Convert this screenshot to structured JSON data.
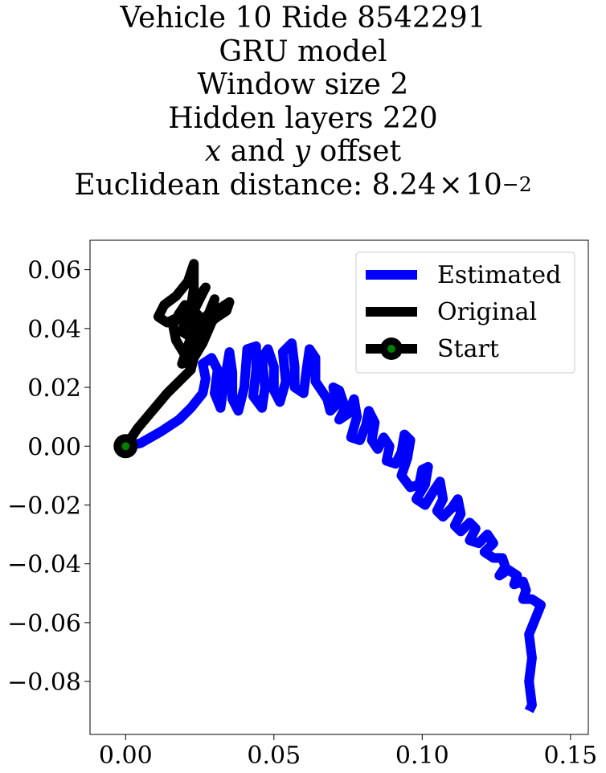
{
  "chart_data": {
    "type": "line",
    "title_lines": [
      "Vehicle 10 Ride 8542291",
      "GRU model",
      "Window size 2",
      "Hidden layers 220"
    ],
    "title_offset_line": {
      "var1": "x",
      "and": " and ",
      "var2": "y",
      "rest": " offset"
    },
    "title_distance_line": {
      "prefix": "Euclidean distance: ",
      "value": "8.24",
      "times": "×",
      "base": "10",
      "exponent": "−2"
    },
    "xlabel": "",
    "ylabel": "",
    "xlim": [
      -0.012,
      0.156
    ],
    "ylim": [
      -0.098,
      0.07
    ],
    "xticks": [
      0.0,
      0.05,
      0.1,
      0.15
    ],
    "xtick_labels": [
      "0.00",
      "0.05",
      "0.10",
      "0.15"
    ],
    "yticks": [
      0.06,
      0.04,
      0.02,
      0.0,
      -0.02,
      -0.04,
      -0.06,
      -0.08
    ],
    "ytick_labels": [
      "0.06",
      "0.04",
      "0.02",
      "0.00",
      "−0.02",
      "−0.04",
      "−0.06",
      "−0.08"
    ],
    "grid": false,
    "legend_position": "top-right",
    "series": [
      {
        "name": "Estimated",
        "color": "#0000ff",
        "points": [
          [
            0.0,
            0.0
          ],
          [
            0.005,
            0.001
          ],
          [
            0.012,
            0.005
          ],
          [
            0.018,
            0.009
          ],
          [
            0.022,
            0.013
          ],
          [
            0.026,
            0.018
          ],
          [
            0.027,
            0.023
          ],
          [
            0.026,
            0.028
          ],
          [
            0.029,
            0.03
          ],
          [
            0.031,
            0.026
          ],
          [
            0.03,
            0.018
          ],
          [
            0.032,
            0.013
          ],
          [
            0.033,
            0.02
          ],
          [
            0.035,
            0.032
          ],
          [
            0.036,
            0.025
          ],
          [
            0.036,
            0.016
          ],
          [
            0.038,
            0.012
          ],
          [
            0.04,
            0.02
          ],
          [
            0.041,
            0.033
          ],
          [
            0.044,
            0.034
          ],
          [
            0.044,
            0.026
          ],
          [
            0.043,
            0.017
          ],
          [
            0.046,
            0.013
          ],
          [
            0.047,
            0.02
          ],
          [
            0.046,
            0.03
          ],
          [
            0.048,
            0.033
          ],
          [
            0.05,
            0.027
          ],
          [
            0.05,
            0.019
          ],
          [
            0.052,
            0.015
          ],
          [
            0.054,
            0.022
          ],
          [
            0.053,
            0.032
          ],
          [
            0.056,
            0.035
          ],
          [
            0.057,
            0.027
          ],
          [
            0.057,
            0.02
          ],
          [
            0.06,
            0.018
          ],
          [
            0.061,
            0.026
          ],
          [
            0.062,
            0.033
          ],
          [
            0.064,
            0.03
          ],
          [
            0.064,
            0.022
          ],
          [
            0.066,
            0.019
          ],
          [
            0.068,
            0.016
          ],
          [
            0.069,
            0.012
          ],
          [
            0.071,
            0.014
          ],
          [
            0.07,
            0.02
          ],
          [
            0.072,
            0.019
          ],
          [
            0.074,
            0.013
          ],
          [
            0.072,
            0.009
          ],
          [
            0.075,
            0.011
          ],
          [
            0.077,
            0.016
          ],
          [
            0.078,
            0.01
          ],
          [
            0.076,
            0.003
          ],
          [
            0.079,
            0.002
          ],
          [
            0.081,
            0.007
          ],
          [
            0.082,
            0.012
          ],
          [
            0.084,
            0.008
          ],
          [
            0.083,
            0.002
          ],
          [
            0.085,
            -0.001
          ],
          [
            0.087,
            0.003
          ],
          [
            0.089,
            0.0
          ],
          [
            0.088,
            -0.005
          ],
          [
            0.091,
            -0.006
          ],
          [
            0.093,
            -0.002
          ],
          [
            0.094,
            0.004
          ],
          [
            0.096,
            0.002
          ],
          [
            0.095,
            -0.004
          ],
          [
            0.093,
            -0.01
          ],
          [
            0.096,
            -0.014
          ],
          [
            0.099,
            -0.013
          ],
          [
            0.1,
            -0.008
          ],
          [
            0.102,
            -0.007
          ],
          [
            0.101,
            -0.013
          ],
          [
            0.098,
            -0.018
          ],
          [
            0.101,
            -0.02
          ],
          [
            0.104,
            -0.015
          ],
          [
            0.106,
            -0.012
          ],
          [
            0.107,
            -0.018
          ],
          [
            0.105,
            -0.022
          ],
          [
            0.107,
            -0.024
          ],
          [
            0.11,
            -0.021
          ],
          [
            0.112,
            -0.018
          ],
          [
            0.113,
            -0.023
          ],
          [
            0.111,
            -0.027
          ],
          [
            0.113,
            -0.029
          ],
          [
            0.116,
            -0.026
          ],
          [
            0.118,
            -0.028
          ],
          [
            0.116,
            -0.032
          ],
          [
            0.119,
            -0.033
          ],
          [
            0.122,
            -0.03
          ],
          [
            0.124,
            -0.033
          ],
          [
            0.121,
            -0.036
          ],
          [
            0.124,
            -0.038
          ],
          [
            0.127,
            -0.038
          ],
          [
            0.128,
            -0.041
          ],
          [
            0.126,
            -0.044
          ],
          [
            0.129,
            -0.042
          ],
          [
            0.132,
            -0.044
          ],
          [
            0.131,
            -0.047
          ],
          [
            0.134,
            -0.046
          ],
          [
            0.135,
            -0.049
          ],
          [
            0.134,
            -0.052
          ],
          [
            0.137,
            -0.052
          ],
          [
            0.14,
            -0.054
          ],
          [
            0.138,
            -0.059
          ],
          [
            0.136,
            -0.064
          ],
          [
            0.137,
            -0.072
          ],
          [
            0.136,
            -0.08
          ],
          [
            0.137,
            -0.088
          ],
          [
            0.136,
            -0.09
          ]
        ]
      },
      {
        "name": "Original",
        "color": "#000000",
        "points": [
          [
            0.0,
            0.0
          ],
          [
            0.004,
            0.006
          ],
          [
            0.009,
            0.012
          ],
          [
            0.014,
            0.018
          ],
          [
            0.019,
            0.023
          ],
          [
            0.022,
            0.026
          ],
          [
            0.02,
            0.031
          ],
          [
            0.017,
            0.036
          ],
          [
            0.016,
            0.041
          ],
          [
            0.018,
            0.045
          ],
          [
            0.02,
            0.048
          ],
          [
            0.023,
            0.046
          ],
          [
            0.025,
            0.041
          ],
          [
            0.022,
            0.037
          ],
          [
            0.019,
            0.039
          ],
          [
            0.021,
            0.045
          ],
          [
            0.024,
            0.05
          ],
          [
            0.027,
            0.054
          ],
          [
            0.025,
            0.05
          ],
          [
            0.023,
            0.046
          ],
          [
            0.026,
            0.043
          ],
          [
            0.029,
            0.046
          ],
          [
            0.03,
            0.05
          ],
          [
            0.028,
            0.045
          ],
          [
            0.026,
            0.04
          ],
          [
            0.023,
            0.036
          ],
          [
            0.021,
            0.032
          ],
          [
            0.019,
            0.028
          ],
          [
            0.021,
            0.034
          ],
          [
            0.023,
            0.04
          ],
          [
            0.022,
            0.047
          ],
          [
            0.023,
            0.054
          ],
          [
            0.023,
            0.062
          ],
          [
            0.021,
            0.056
          ],
          [
            0.017,
            0.051
          ],
          [
            0.013,
            0.048
          ],
          [
            0.011,
            0.044
          ],
          [
            0.014,
            0.042
          ],
          [
            0.018,
            0.044
          ],
          [
            0.021,
            0.042
          ],
          [
            0.024,
            0.039
          ],
          [
            0.027,
            0.041
          ],
          [
            0.031,
            0.044
          ],
          [
            0.034,
            0.046
          ],
          [
            0.035,
            0.049
          ],
          [
            0.032,
            0.047
          ],
          [
            0.029,
            0.042
          ],
          [
            0.026,
            0.035
          ],
          [
            0.023,
            0.03
          ],
          [
            0.022,
            0.026
          ]
        ]
      }
    ],
    "start_point": {
      "name": "Start",
      "x": 0.0,
      "y": 0.0,
      "marker_color": "#008000",
      "edge_color": "#000000"
    }
  }
}
